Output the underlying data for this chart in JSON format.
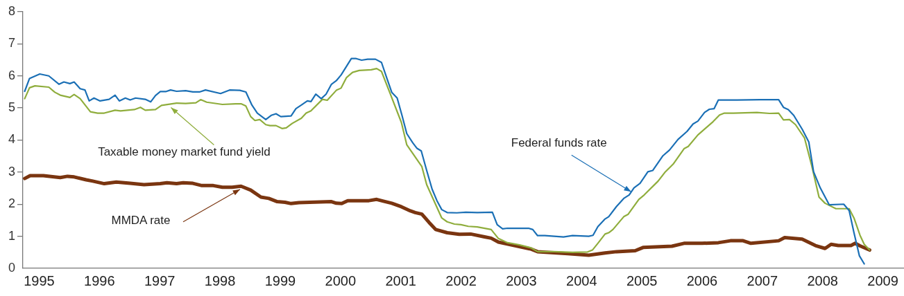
{
  "chart_data": {
    "type": "line",
    "xlim": [
      1994.73,
      2009.35
    ],
    "xticks": [
      1995,
      1996,
      1997,
      1998,
      1999,
      2000,
      2001,
      2002,
      2003,
      2004,
      2005,
      2006,
      2007,
      2008,
      2009
    ],
    "ylim": [
      0,
      8
    ],
    "yticks": [
      0,
      1,
      2,
      3,
      4,
      5,
      6,
      7,
      8
    ],
    "grid": false,
    "legend": false,
    "marker": "none",
    "line_style": "solid",
    "series": [
      {
        "color": "#1a6fb5",
        "x": [
          1994.76,
          1994.84,
          1995.01,
          1995.16,
          1995.33,
          1995.41,
          1995.51,
          1995.58,
          1995.68,
          1995.76,
          1995.83,
          1995.91,
          1996.01,
          1996.16,
          1996.26,
          1996.33,
          1996.43,
          1996.51,
          1996.6,
          1996.76,
          1996.85,
          1996.93,
          1997.01,
          1997.1,
          1997.18,
          1997.28,
          1997.43,
          1997.55,
          1997.66,
          1997.76,
          1998.01,
          1998.16,
          1998.33,
          1998.43,
          1998.53,
          1998.62,
          1998.76,
          1998.85,
          1998.93,
          1999.01,
          1999.18,
          1999.26,
          1999.35,
          1999.45,
          1999.51,
          1999.59,
          1999.68,
          1999.76,
          1999.85,
          1999.93,
          2000.01,
          2000.08,
          2000.18,
          2000.26,
          2000.35,
          2000.45,
          2000.58,
          2000.68,
          2000.77,
          2000.85,
          2000.94,
          2001.02,
          2001.1,
          2001.2,
          2001.27,
          2001.34,
          2001.43,
          2001.52,
          2001.6,
          2001.68,
          2001.77,
          2001.93,
          2002.08,
          2002.27,
          2002.52,
          2002.6,
          2002.69,
          2002.77,
          2002.97,
          2003.12,
          2003.19,
          2003.27,
          2003.39,
          2003.7,
          2003.85,
          2004.12,
          2004.19,
          2004.27,
          2004.39,
          2004.45,
          2004.58,
          2004.7,
          2004.79,
          2004.87,
          2004.97,
          2005.1,
          2005.18,
          2005.35,
          2005.46,
          2005.6,
          2005.75,
          2005.85,
          2005.93,
          2006.04,
          2006.12,
          2006.2,
          2006.27,
          2006.58,
          2006.96,
          2007.27,
          2007.35,
          2007.43,
          2007.52,
          2007.66,
          2007.77,
          2007.85,
          2007.96,
          2008.11,
          2008.35,
          2008.44,
          2008.52,
          2008.61,
          2008.69
        ],
        "values": [
          5.52,
          5.92,
          6.06,
          6.0,
          5.74,
          5.81,
          5.76,
          5.81,
          5.6,
          5.56,
          5.22,
          5.31,
          5.22,
          5.27,
          5.4,
          5.22,
          5.31,
          5.25,
          5.31,
          5.27,
          5.19,
          5.39,
          5.51,
          5.51,
          5.56,
          5.52,
          5.54,
          5.5,
          5.5,
          5.56,
          5.45,
          5.56,
          5.55,
          5.5,
          5.09,
          4.84,
          4.64,
          4.77,
          4.82,
          4.73,
          4.75,
          4.98,
          5.09,
          5.22,
          5.2,
          5.43,
          5.29,
          5.43,
          5.74,
          5.85,
          6.03,
          6.24,
          6.54,
          6.54,
          6.49,
          6.52,
          6.52,
          6.42,
          5.92,
          5.49,
          5.31,
          4.77,
          4.2,
          3.91,
          3.74,
          3.66,
          3.05,
          2.47,
          2.11,
          1.83,
          1.74,
          1.73,
          1.75,
          1.74,
          1.75,
          1.36,
          1.23,
          1.25,
          1.25,
          1.25,
          1.21,
          1.02,
          1.02,
          0.98,
          1.02,
          1.0,
          1.03,
          1.3,
          1.54,
          1.61,
          1.93,
          2.18,
          2.29,
          2.51,
          2.65,
          3.01,
          3.05,
          3.51,
          3.69,
          4.02,
          4.27,
          4.5,
          4.59,
          4.86,
          4.96,
          4.98,
          5.25,
          5.25,
          5.26,
          5.26,
          5.02,
          4.95,
          4.77,
          4.34,
          3.94,
          3.01,
          2.51,
          1.98,
          2.0,
          1.8,
          1.11,
          0.39,
          0.14
        ]
      },
      {
        "color": "#8fad3c",
        "x": [
          1994.76,
          1994.84,
          1994.93,
          1995.16,
          1995.26,
          1995.35,
          1995.51,
          1995.58,
          1995.68,
          1995.85,
          1995.97,
          1996.08,
          1996.26,
          1996.35,
          1996.58,
          1996.68,
          1996.76,
          1996.93,
          1997.03,
          1997.28,
          1997.43,
          1997.6,
          1997.68,
          1997.78,
          1998.04,
          1998.26,
          1998.35,
          1998.43,
          1998.51,
          1998.58,
          1998.66,
          1998.76,
          1998.83,
          1998.93,
          1999.03,
          1999.1,
          1999.2,
          1999.35,
          1999.43,
          1999.51,
          1999.7,
          1999.78,
          1999.93,
          2000.01,
          2000.1,
          2000.2,
          2000.31,
          2000.51,
          2000.6,
          2000.68,
          2000.83,
          2001.01,
          2001.1,
          2001.35,
          2001.43,
          2001.68,
          2001.77,
          2001.89,
          2002.0,
          2002.12,
          2002.27,
          2002.5,
          2002.62,
          2002.77,
          2002.97,
          2003.16,
          2003.27,
          2003.54,
          2003.85,
          2004.1,
          2004.18,
          2004.27,
          2004.39,
          2004.45,
          2004.52,
          2004.7,
          2004.77,
          2004.95,
          2005.04,
          2005.27,
          2005.39,
          2005.52,
          2005.7,
          2005.77,
          2005.93,
          2006.18,
          2006.29,
          2006.37,
          2006.52,
          2006.91,
          2007.12,
          2007.27,
          2007.35,
          2007.45,
          2007.55,
          2007.7,
          2007.82,
          2007.94,
          2008.04,
          2008.22,
          2008.44,
          2008.52,
          2008.62,
          2008.69,
          2008.78
        ],
        "values": [
          5.29,
          5.63,
          5.69,
          5.65,
          5.49,
          5.4,
          5.33,
          5.42,
          5.29,
          4.88,
          4.84,
          4.84,
          4.93,
          4.91,
          4.95,
          5.02,
          4.93,
          4.95,
          5.08,
          5.15,
          5.14,
          5.16,
          5.26,
          5.18,
          5.11,
          5.13,
          5.13,
          5.06,
          4.73,
          4.61,
          4.64,
          4.48,
          4.45,
          4.45,
          4.36,
          4.38,
          4.52,
          4.68,
          4.84,
          4.91,
          5.27,
          5.24,
          5.55,
          5.62,
          5.95,
          6.11,
          6.17,
          6.19,
          6.23,
          6.14,
          5.42,
          4.55,
          3.85,
          3.17,
          2.61,
          1.57,
          1.45,
          1.38,
          1.36,
          1.31,
          1.29,
          1.21,
          0.93,
          0.8,
          0.73,
          0.64,
          0.52,
          0.52,
          0.5,
          0.51,
          0.57,
          0.78,
          1.07,
          1.11,
          1.21,
          1.61,
          1.68,
          2.15,
          2.29,
          2.72,
          3.01,
          3.25,
          3.73,
          3.8,
          4.16,
          4.57,
          4.78,
          4.84,
          4.84,
          4.86,
          4.83,
          4.84,
          4.63,
          4.64,
          4.48,
          4.06,
          3.19,
          2.22,
          2.03,
          1.86,
          1.86,
          1.57,
          1.03,
          0.75,
          0.57
        ]
      },
      {
        "color": "#7a3510",
        "x": [
          1994.76,
          1994.85,
          1995.07,
          1995.35,
          1995.47,
          1995.58,
          1995.78,
          1995.89,
          1996.08,
          1996.28,
          1996.51,
          1996.74,
          1997.01,
          1997.12,
          1997.28,
          1997.39,
          1997.55,
          1997.7,
          1997.89,
          1998.04,
          1998.2,
          1998.35,
          1998.51,
          1998.68,
          1998.81,
          1998.95,
          1999.08,
          1999.18,
          1999.31,
          1999.85,
          1999.93,
          2000.02,
          2000.12,
          2000.47,
          2000.6,
          2000.7,
          2000.85,
          2001.01,
          2001.16,
          2001.24,
          2001.35,
          2001.47,
          2001.58,
          2001.77,
          2001.97,
          2002.16,
          2002.39,
          2002.5,
          2002.62,
          2003.16,
          2003.27,
          2003.77,
          2004.12,
          2004.39,
          2004.58,
          2004.89,
          2005.02,
          2005.5,
          2005.7,
          2006.0,
          2006.27,
          2006.47,
          2006.68,
          2006.81,
          2007.27,
          2007.37,
          2007.66,
          2007.88,
          2008.04,
          2008.14,
          2008.26,
          2008.47,
          2008.54,
          2008.62,
          2008.78
        ],
        "values": [
          2.8,
          2.89,
          2.89,
          2.83,
          2.87,
          2.85,
          2.76,
          2.72,
          2.64,
          2.69,
          2.65,
          2.61,
          2.64,
          2.67,
          2.64,
          2.67,
          2.65,
          2.58,
          2.58,
          2.53,
          2.53,
          2.56,
          2.44,
          2.22,
          2.18,
          2.08,
          2.06,
          2.02,
          2.05,
          2.08,
          2.03,
          2.02,
          2.11,
          2.11,
          2.15,
          2.1,
          2.03,
          1.92,
          1.79,
          1.74,
          1.69,
          1.43,
          1.21,
          1.11,
          1.06,
          1.07,
          0.98,
          0.94,
          0.82,
          0.6,
          0.52,
          0.46,
          0.41,
          0.48,
          0.52,
          0.55,
          0.65,
          0.69,
          0.78,
          0.78,
          0.8,
          0.86,
          0.86,
          0.78,
          0.86,
          0.96,
          0.91,
          0.71,
          0.62,
          0.75,
          0.71,
          0.71,
          0.78,
          0.7,
          0.57
        ]
      }
    ],
    "annotations": [
      {
        "text": "Federal funds rate",
        "x": 2004.8,
        "y": 2.3
      },
      {
        "text": "Taxable money market fund yield",
        "x": 1997.21,
        "y": 5.1
      },
      {
        "text": "MMDA rate",
        "x": 1998.31,
        "y": 2.55
      }
    ]
  }
}
